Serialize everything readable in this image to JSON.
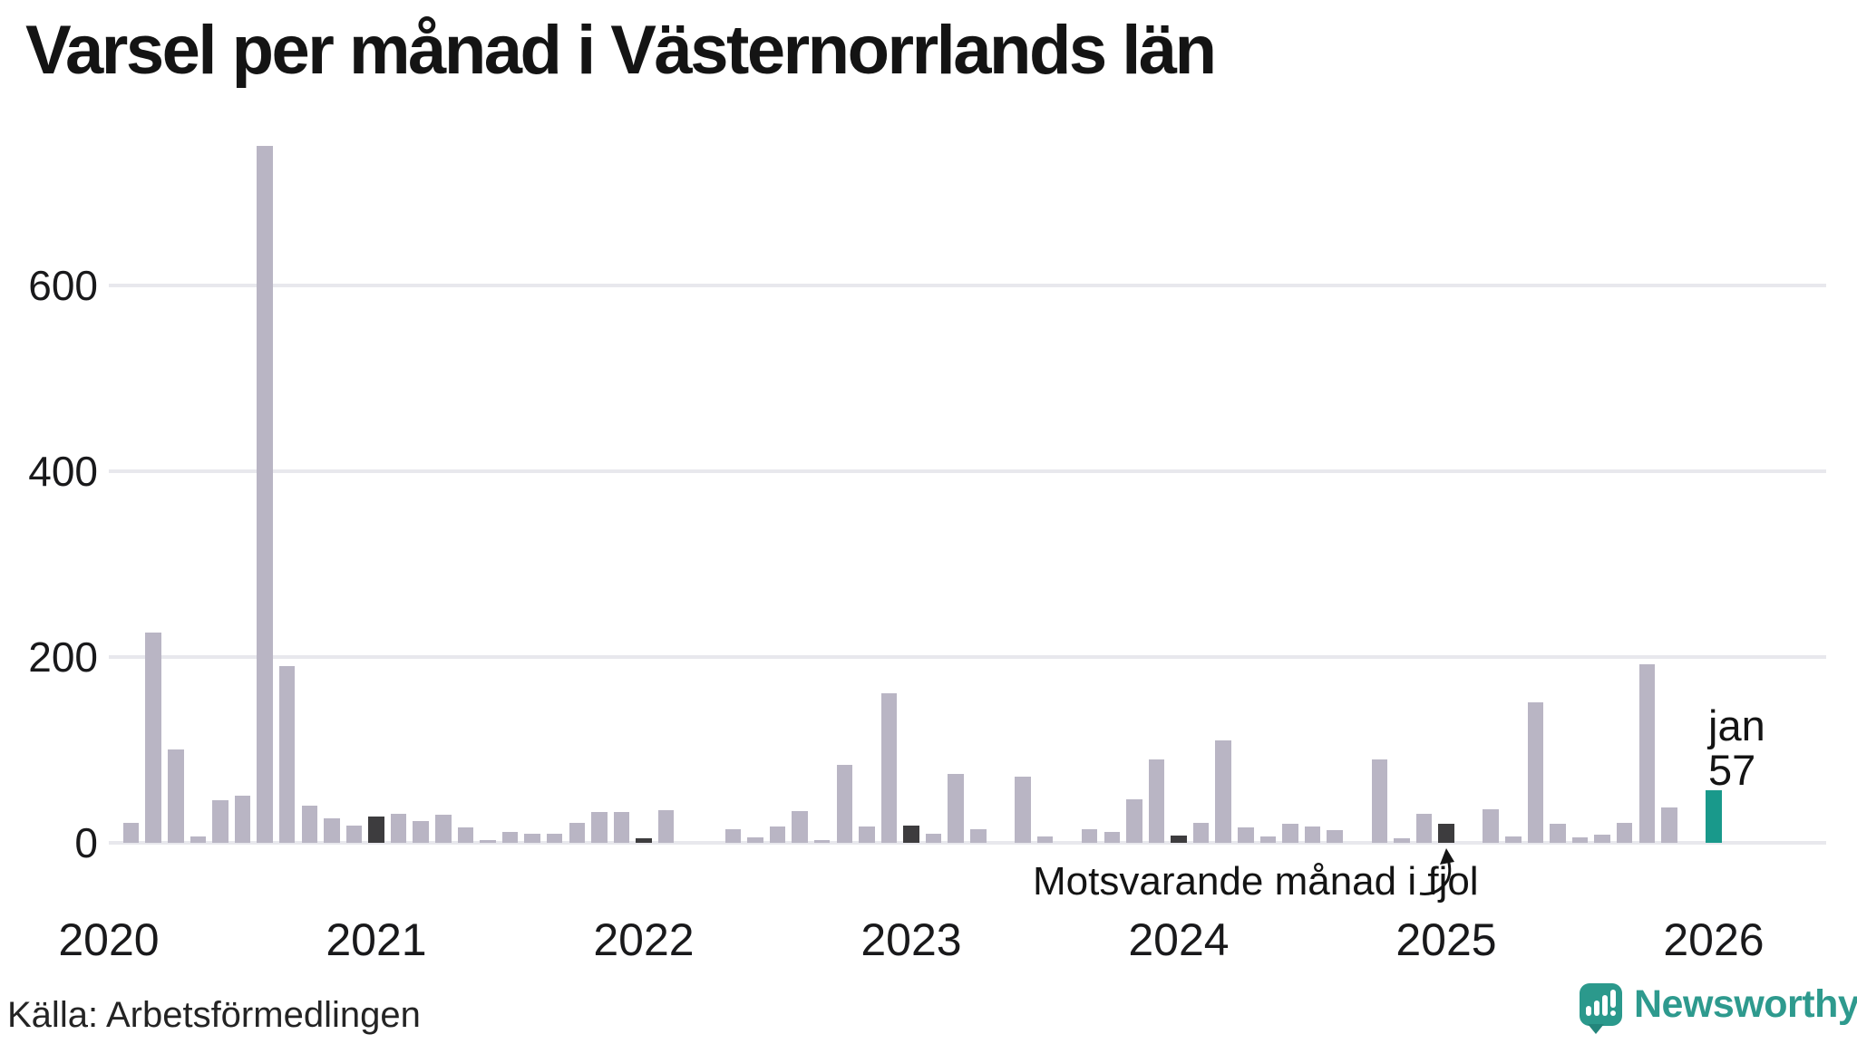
{
  "title": "Varsel per månad i Västernorrlands län",
  "source": "Källa: Arbetsförmedlingen",
  "annotation": {
    "text": "Motsvarande månad i fjol",
    "points_to": "jan 2025"
  },
  "highlight_label": {
    "line1": "jan",
    "line2": "57"
  },
  "branding": {
    "name": "Newsworthy"
  },
  "colors": {
    "bar_normal": "#b9b5c4",
    "bar_january": "#3d3c3e",
    "bar_current": "#19998b",
    "grid": "#e8e8ed",
    "brand_teal": "#2e9a8e",
    "text": "#141414"
  },
  "chart_data": {
    "type": "bar",
    "title": "Varsel per månad i Västernorrlands län",
    "ylabel": "",
    "xlabel": "",
    "ylim": [
      0,
      760
    ],
    "yticks": [
      0,
      200,
      400,
      600
    ],
    "grid": "horizontal",
    "legend": "none",
    "x_year_labels": [
      "2020",
      "2021",
      "2022",
      "2023",
      "2024",
      "2025",
      "2026"
    ],
    "months": [
      {
        "label": "jan 2020",
        "value": 0,
        "role": "normal"
      },
      {
        "label": "feb 2020",
        "value": 22,
        "role": "normal"
      },
      {
        "label": "mar 2020",
        "value": 226,
        "role": "normal"
      },
      {
        "label": "apr 2020",
        "value": 101,
        "role": "normal"
      },
      {
        "label": "maj 2020",
        "value": 7,
        "role": "normal"
      },
      {
        "label": "jun 2020",
        "value": 46,
        "role": "normal"
      },
      {
        "label": "jul 2020",
        "value": 51,
        "role": "normal"
      },
      {
        "label": "aug 2020",
        "value": 750,
        "role": "normal"
      },
      {
        "label": "sep 2020",
        "value": 190,
        "role": "normal"
      },
      {
        "label": "okt 2020",
        "value": 40,
        "role": "normal"
      },
      {
        "label": "nov 2020",
        "value": 26,
        "role": "normal"
      },
      {
        "label": "dec 2020",
        "value": 19,
        "role": "normal"
      },
      {
        "label": "jan 2021",
        "value": 28,
        "role": "january"
      },
      {
        "label": "feb 2021",
        "value": 31,
        "role": "normal"
      },
      {
        "label": "mar 2021",
        "value": 23,
        "role": "normal"
      },
      {
        "label": "apr 2021",
        "value": 30,
        "role": "normal"
      },
      {
        "label": "maj 2021",
        "value": 17,
        "role": "normal"
      },
      {
        "label": "jun 2021",
        "value": 3,
        "role": "normal"
      },
      {
        "label": "jul 2021",
        "value": 12,
        "role": "normal"
      },
      {
        "label": "aug 2021",
        "value": 10,
        "role": "normal"
      },
      {
        "label": "sep 2021",
        "value": 10,
        "role": "normal"
      },
      {
        "label": "okt 2021",
        "value": 22,
        "role": "normal"
      },
      {
        "label": "nov 2021",
        "value": 33,
        "role": "normal"
      },
      {
        "label": "dec 2021",
        "value": 33,
        "role": "normal"
      },
      {
        "label": "jan 2022",
        "value": 5,
        "role": "january"
      },
      {
        "label": "feb 2022",
        "value": 35,
        "role": "normal"
      },
      {
        "label": "mar 2022",
        "value": 0,
        "role": "normal"
      },
      {
        "label": "apr 2022",
        "value": 0,
        "role": "normal"
      },
      {
        "label": "maj 2022",
        "value": 15,
        "role": "normal"
      },
      {
        "label": "jun 2022",
        "value": 6,
        "role": "normal"
      },
      {
        "label": "jul 2022",
        "value": 18,
        "role": "normal"
      },
      {
        "label": "aug 2022",
        "value": 34,
        "role": "normal"
      },
      {
        "label": "sep 2022",
        "value": 3,
        "role": "normal"
      },
      {
        "label": "okt 2022",
        "value": 84,
        "role": "normal"
      },
      {
        "label": "nov 2022",
        "value": 18,
        "role": "normal"
      },
      {
        "label": "dec 2022",
        "value": 161,
        "role": "normal"
      },
      {
        "label": "jan 2023",
        "value": 19,
        "role": "january"
      },
      {
        "label": "feb 2023",
        "value": 10,
        "role": "normal"
      },
      {
        "label": "mar 2023",
        "value": 74,
        "role": "normal"
      },
      {
        "label": "apr 2023",
        "value": 15,
        "role": "normal"
      },
      {
        "label": "maj 2023",
        "value": 0,
        "role": "normal"
      },
      {
        "label": "jun 2023",
        "value": 71,
        "role": "normal"
      },
      {
        "label": "jul 2023",
        "value": 7,
        "role": "normal"
      },
      {
        "label": "aug 2023",
        "value": 0,
        "role": "normal"
      },
      {
        "label": "sep 2023",
        "value": 15,
        "role": "normal"
      },
      {
        "label": "okt 2023",
        "value": 12,
        "role": "normal"
      },
      {
        "label": "nov 2023",
        "value": 47,
        "role": "normal"
      },
      {
        "label": "dec 2023",
        "value": 90,
        "role": "normal"
      },
      {
        "label": "jan 2024",
        "value": 8,
        "role": "january"
      },
      {
        "label": "feb 2024",
        "value": 22,
        "role": "normal"
      },
      {
        "label": "mar 2024",
        "value": 110,
        "role": "normal"
      },
      {
        "label": "apr 2024",
        "value": 17,
        "role": "normal"
      },
      {
        "label": "maj 2024",
        "value": 7,
        "role": "normal"
      },
      {
        "label": "jun 2024",
        "value": 21,
        "role": "normal"
      },
      {
        "label": "jul 2024",
        "value": 18,
        "role": "normal"
      },
      {
        "label": "aug 2024",
        "value": 14,
        "role": "normal"
      },
      {
        "label": "sep 2024",
        "value": 0,
        "role": "normal"
      },
      {
        "label": "okt 2024",
        "value": 90,
        "role": "normal"
      },
      {
        "label": "nov 2024",
        "value": 5,
        "role": "normal"
      },
      {
        "label": "dec 2024",
        "value": 31,
        "role": "normal"
      },
      {
        "label": "jan 2025",
        "value": 21,
        "role": "january"
      },
      {
        "label": "feb 2025",
        "value": 0,
        "role": "normal"
      },
      {
        "label": "mar 2025",
        "value": 36,
        "role": "normal"
      },
      {
        "label": "apr 2025",
        "value": 7,
        "role": "normal"
      },
      {
        "label": "maj 2025",
        "value": 151,
        "role": "normal"
      },
      {
        "label": "jun 2025",
        "value": 21,
        "role": "normal"
      },
      {
        "label": "jul 2025",
        "value": 6,
        "role": "normal"
      },
      {
        "label": "aug 2025",
        "value": 9,
        "role": "normal"
      },
      {
        "label": "sep 2025",
        "value": 22,
        "role": "normal"
      },
      {
        "label": "okt 2025",
        "value": 192,
        "role": "normal"
      },
      {
        "label": "nov 2025",
        "value": 38,
        "role": "normal"
      },
      {
        "label": "dec 2025",
        "value": 0,
        "role": "normal"
      },
      {
        "label": "jan 2026",
        "value": 57,
        "role": "current"
      }
    ]
  }
}
